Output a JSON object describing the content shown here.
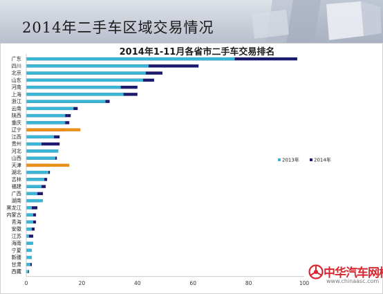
{
  "banner": {
    "title": "2014年二手车区域交易情况"
  },
  "watermark": {
    "text": "中华汽车网校",
    "url": "www.chinaasc.com"
  },
  "colors": {
    "series2013": "#3ab6d4",
    "series2014": "#1c1a6e",
    "highlight": "#e8901a",
    "highlight_edge": "#c0392b"
  },
  "chart_data": {
    "type": "bar",
    "orientation": "horizontal",
    "stacked": false,
    "title": "2014年1-11月各省市二手车交易排名",
    "categories": [
      "广东",
      "四川",
      "北京",
      "山东",
      "河南",
      "上海",
      "浙江",
      "云南",
      "陕西",
      "重庆",
      "辽宁",
      "江西",
      "贵州",
      "河北",
      "山西",
      "天津",
      "湖北",
      "吉林",
      "福建",
      "广西",
      "湖南",
      "黑龙江",
      "内蒙古",
      "青海",
      "安徽",
      "江苏",
      "海南",
      "宁夏",
      "新疆",
      "甘肃",
      "西藏"
    ],
    "series": [
      {
        "name": "2013年",
        "values": [
          75.0,
          44.0,
          43.0,
          42.0,
          34.0,
          35.0,
          28.5,
          17.0,
          14.0,
          14.0,
          19.5,
          10.0,
          5.5,
          11.5,
          10.5,
          15.5,
          8.0,
          6.5,
          5.5,
          4.0,
          6.0,
          2.0,
          2.5,
          2.5,
          2.0,
          1.0,
          2.5,
          2.0,
          2.0,
          1.5,
          0.8
        ]
      },
      {
        "name": "2014年",
        "values": [
          97.5,
          62.0,
          49.0,
          46.0,
          40.0,
          40.0,
          30.0,
          18.5,
          16.0,
          15.5,
          14.0,
          12.0,
          12.0,
          11.5,
          11.0,
          8.5,
          8.5,
          7.5,
          7.0,
          6.0,
          5.0,
          4.0,
          3.5,
          3.5,
          3.0,
          2.5,
          2.0,
          2.0,
          2.0,
          2.0,
          1.0
        ]
      }
    ],
    "highlighted_categories": [
      "辽宁",
      "天津"
    ],
    "xlim": [
      0,
      100
    ],
    "xticks": [
      0,
      20,
      40,
      60,
      80,
      100
    ],
    "grid": false,
    "legend": "right"
  }
}
